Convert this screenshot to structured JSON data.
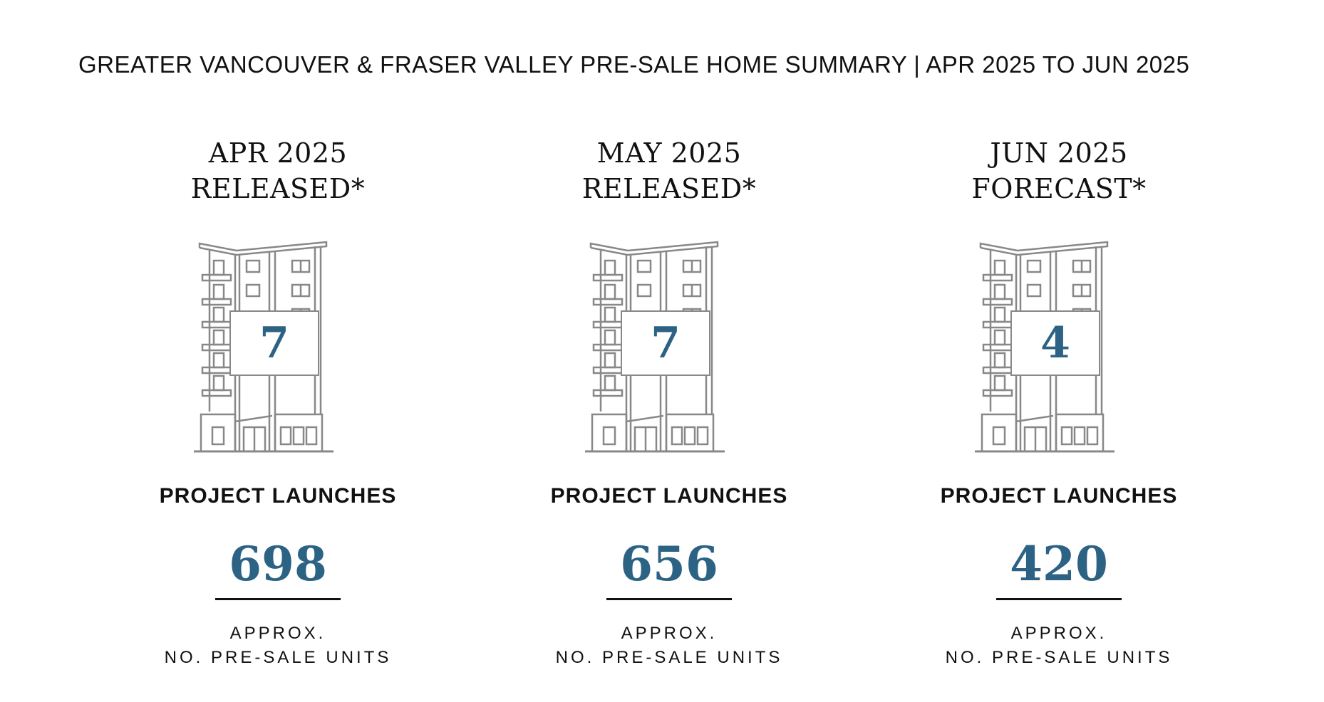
{
  "title": "GREATER VANCOUVER & FRASER VALLEY PRE-SALE HOME SUMMARY | APR 2025 TO JUN 2025",
  "columns": [
    {
      "period": "APR 2025",
      "status": "RELEASED*",
      "launches": "7",
      "launches_label": "PROJECT LAUNCHES",
      "units": "698",
      "units_label_line1": "APPROX.",
      "units_label_line2": "NO. PRE-SALE UNITS",
      "icon": "building-icon"
    },
    {
      "period": "MAY 2025",
      "status": "RELEASED*",
      "launches": "7",
      "launches_label": "PROJECT LAUNCHES",
      "units": "656",
      "units_label_line1": "APPROX.",
      "units_label_line2": "NO. PRE-SALE UNITS",
      "icon": "building-icon"
    },
    {
      "period": "JUN 2025",
      "status": "FORECAST*",
      "launches": "4",
      "launches_label": "PROJECT LAUNCHES",
      "units": "420",
      "units_label_line1": "APPROX.",
      "units_label_line2": "NO. PRE-SALE UNITS",
      "icon": "building-icon"
    }
  ],
  "colors": {
    "accent": "#2c6384",
    "text": "#111111",
    "line_art": "#888888"
  }
}
